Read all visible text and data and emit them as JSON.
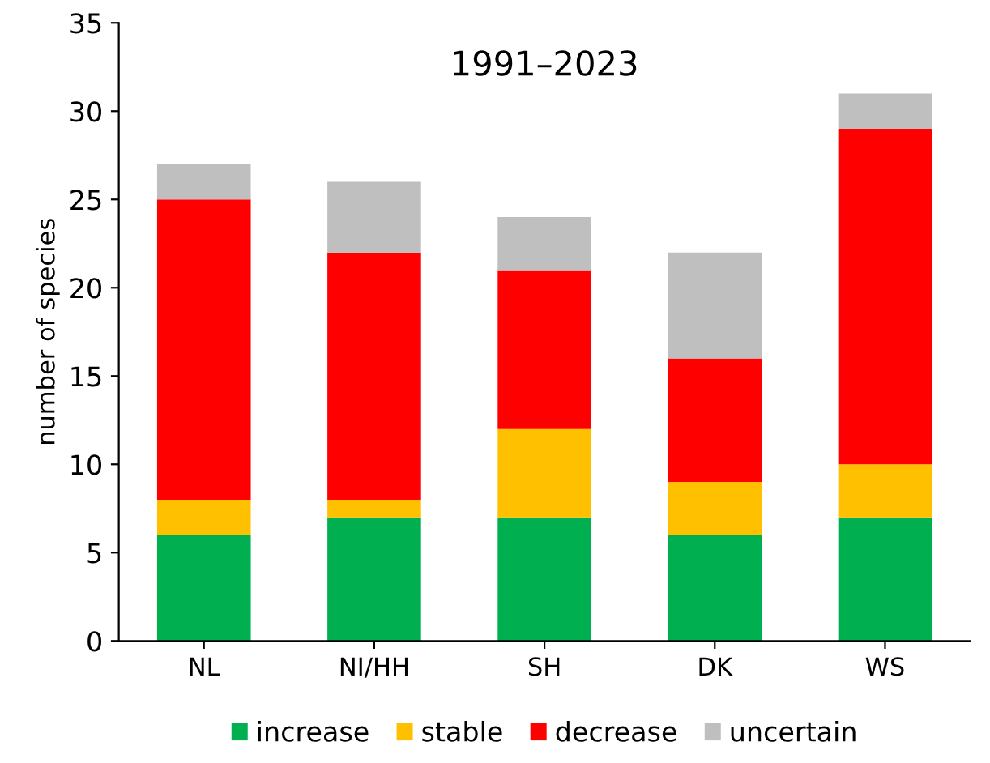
{
  "chart_data": {
    "type": "bar",
    "stacked": true,
    "title": "1991–2023",
    "ylabel": "number of species",
    "categories": [
      "NL",
      "NI/HH",
      "SH",
      "DK",
      "WS"
    ],
    "series": [
      {
        "name": "increase",
        "color": "#00b050",
        "values": [
          6,
          7,
          7,
          6,
          7
        ]
      },
      {
        "name": "stable",
        "color": "#ffc000",
        "values": [
          2,
          1,
          5,
          3,
          3
        ]
      },
      {
        "name": "decrease",
        "color": "#ff0000",
        "values": [
          17,
          14,
          9,
          7,
          19
        ]
      },
      {
        "name": "uncertain",
        "color": "#bfbfbf",
        "values": [
          2,
          4,
          3,
          6,
          2
        ]
      }
    ],
    "ylim": [
      0,
      35
    ],
    "yticks": [
      0,
      5,
      10,
      15,
      20,
      25,
      30,
      35
    ],
    "grid": false,
    "legend": "bottom"
  }
}
